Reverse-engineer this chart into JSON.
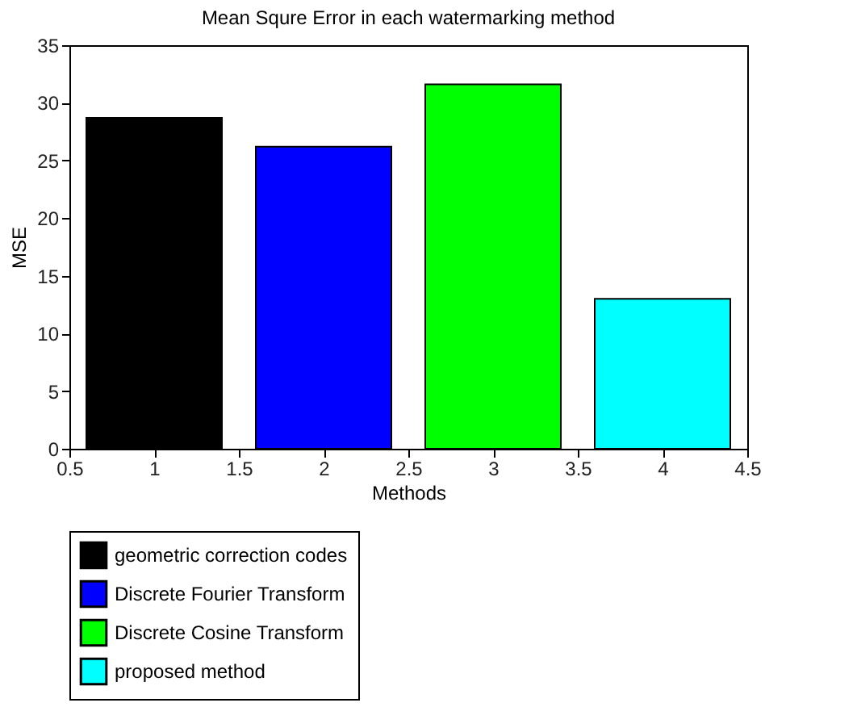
{
  "chart_data": {
    "type": "bar",
    "title": "Mean Squre Error in each watermarking method",
    "xlabel": "Methods",
    "ylabel": "MSE",
    "series": [
      {
        "name": "geometric correction codes",
        "color": "#000000",
        "x": [
          1
        ],
        "values": [
          28.7
        ]
      },
      {
        "name": "Discrete Fourier Transform",
        "color": "#0000ff",
        "x": [
          2
        ],
        "values": [
          26.2
        ]
      },
      {
        "name": "Discrete Cosine Transform",
        "color": "#00ff00",
        "x": [
          3
        ],
        "values": [
          31.6
        ]
      },
      {
        "name": "proposed method",
        "color": "#00ffff",
        "x": [
          4
        ],
        "values": [
          13.0
        ]
      }
    ],
    "xlim": [
      0.5,
      4.5
    ],
    "xticks": [
      0.5,
      1,
      1.5,
      2,
      2.5,
      3,
      3.5,
      4,
      4.5
    ],
    "ylim": [
      0,
      35
    ],
    "yticks": [
      0,
      5,
      10,
      15,
      20,
      25,
      30,
      35
    ],
    "grid": false,
    "legend": "bottom"
  }
}
